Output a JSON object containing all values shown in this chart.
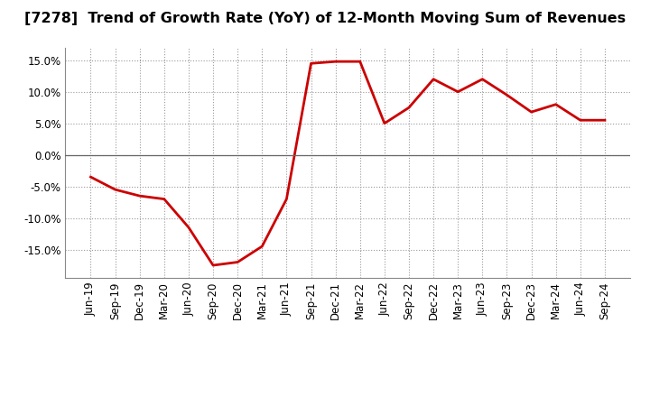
{
  "title": "[7278]  Trend of Growth Rate (YoY) of 12-Month Moving Sum of Revenues",
  "x_labels": [
    "Jun-19",
    "Sep-19",
    "Dec-19",
    "Mar-20",
    "Jun-20",
    "Sep-20",
    "Dec-20",
    "Mar-21",
    "Jun-21",
    "Sep-21",
    "Dec-21",
    "Mar-22",
    "Jun-22",
    "Sep-22",
    "Dec-22",
    "Mar-23",
    "Jun-23",
    "Sep-23",
    "Dec-23",
    "Mar-24",
    "Jun-24",
    "Sep-24"
  ],
  "y_values": [
    -3.5,
    -5.5,
    -6.5,
    -7.0,
    -11.5,
    -17.5,
    -17.0,
    -14.5,
    -7.0,
    14.5,
    14.8,
    14.8,
    5.0,
    7.5,
    12.0,
    10.0,
    12.0,
    9.5,
    6.8,
    8.0,
    5.5,
    5.5
  ],
  "ylim": [
    -19.5,
    17.0
  ],
  "yticks": [
    -15.0,
    -10.0,
    -5.0,
    0.0,
    5.0,
    10.0,
    15.0
  ],
  "line_color": "#cc0000",
  "line_width": 2.0,
  "bg_color": "#ffffff",
  "plot_bg_color": "#ffffff",
  "grid_color": "#999999",
  "title_fontsize": 11.5,
  "tick_fontsize": 8.5
}
